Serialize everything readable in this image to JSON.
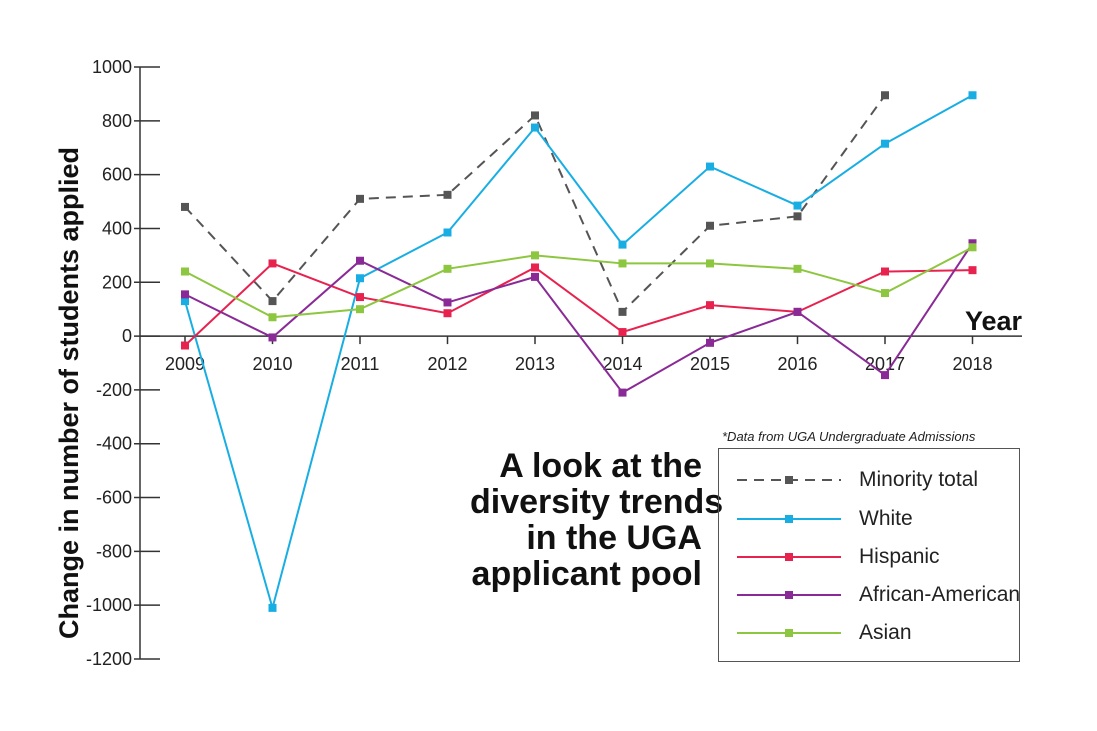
{
  "chart_data": {
    "type": "line",
    "xlabel": "Year",
    "ylabel": "Change in number of students applied",
    "ylim": [
      -1200,
      1000
    ],
    "yticks": [
      1000,
      800,
      600,
      400,
      200,
      0,
      -200,
      -400,
      -600,
      -800,
      -1000,
      -1200
    ],
    "categories": [
      "2009",
      "2010",
      "2011",
      "2012",
      "2013",
      "2014",
      "2015",
      "2016",
      "2017",
      "2018"
    ],
    "series": [
      {
        "name": "Minority total",
        "color": "#555555",
        "dashed": true,
        "values": [
          480,
          130,
          510,
          525,
          820,
          90,
          410,
          445,
          895,
          null
        ]
      },
      {
        "name": "White",
        "color": "#19aee3",
        "dashed": false,
        "values": [
          130,
          -1010,
          215,
          385,
          775,
          340,
          630,
          485,
          715,
          895
        ]
      },
      {
        "name": "Hispanic",
        "color": "#e8224f",
        "dashed": false,
        "values": [
          -35,
          270,
          145,
          85,
          255,
          15,
          115,
          90,
          240,
          245
        ]
      },
      {
        "name": "African-American",
        "color": "#8a2a96",
        "dashed": false,
        "values": [
          155,
          -5,
          280,
          125,
          220,
          -210,
          -25,
          90,
          -145,
          345
        ]
      },
      {
        "name": "Asian",
        "color": "#8dc63f",
        "dashed": false,
        "values": [
          240,
          70,
          100,
          250,
          300,
          270,
          270,
          250,
          160,
          330
        ]
      }
    ],
    "legend_position": "bottom-right"
  },
  "headline": [
    "A look at the",
    "diversity trends",
    "in the UGA",
    "applicant pool"
  ],
  "source_note": "*Data from UGA Undergraduate Admissions"
}
